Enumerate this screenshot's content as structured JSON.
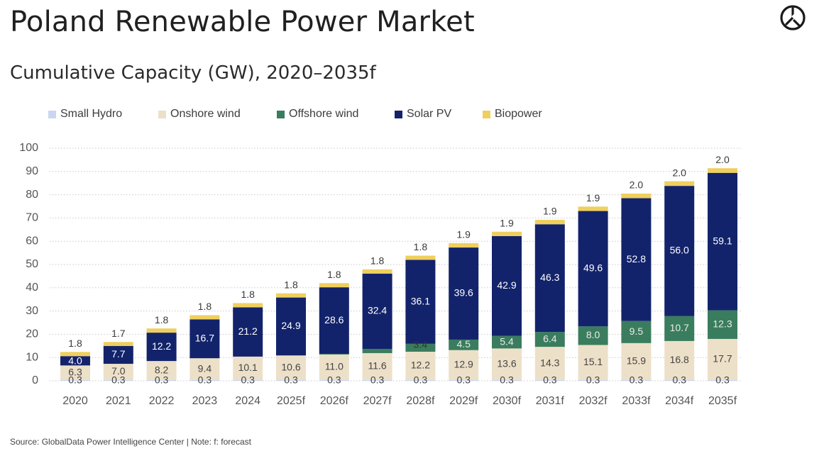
{
  "header": {
    "title": "Poland Renewable Power Market",
    "subtitle": "Cumulative Capacity (GW), 2020–2035f",
    "logo_icon": "globaldata-logo-icon"
  },
  "footer": {
    "source": "Source: GlobalData Power Intelligence Center | Note: f: forecast"
  },
  "chart_data": {
    "type": "bar",
    "stacked": true,
    "categories": [
      "2020",
      "2021",
      "2022",
      "2023",
      "2024",
      "2025f",
      "2026f",
      "2027f",
      "2028f",
      "2029f",
      "2030f",
      "2031f",
      "2032f",
      "2033f",
      "2034f",
      "2035f"
    ],
    "series": [
      {
        "name": "Small Hydro",
        "color": "#c9d6f2",
        "values": [
          0.3,
          0.3,
          0.3,
          0.3,
          0.3,
          0.3,
          0.3,
          0.3,
          0.3,
          0.3,
          0.3,
          0.3,
          0.3,
          0.3,
          0.3,
          0.3
        ]
      },
      {
        "name": "Onshore wind",
        "color": "#ede0c8",
        "values": [
          6.3,
          7.0,
          8.2,
          9.4,
          10.1,
          10.6,
          11.0,
          11.6,
          12.2,
          12.9,
          13.6,
          14.3,
          15.1,
          15.9,
          16.8,
          17.7
        ]
      },
      {
        "name": "Offshore wind",
        "color": "#3a7d5e",
        "values": [
          0,
          0,
          0,
          0,
          0,
          0,
          0.3,
          1.8,
          3.4,
          4.5,
          5.4,
          6.4,
          8.0,
          9.5,
          10.7,
          12.3
        ],
        "labels": [
          "",
          "",
          "",
          "",
          "",
          "",
          "",
          "",
          "3.4",
          "4.5",
          "5.4",
          "6.4",
          "8.0",
          "9.5",
          "10.7",
          "12.3"
        ]
      },
      {
        "name": "Solar PV",
        "color": "#13236b",
        "values": [
          4.0,
          7.7,
          12.2,
          16.7,
          21.2,
          24.9,
          28.6,
          32.4,
          36.1,
          39.6,
          42.9,
          46.3,
          49.6,
          52.8,
          56.0,
          59.1
        ]
      },
      {
        "name": "Biopower",
        "color": "#efcf5e",
        "values": [
          1.8,
          1.7,
          1.8,
          1.8,
          1.8,
          1.8,
          1.8,
          1.8,
          1.8,
          1.9,
          1.9,
          1.9,
          1.9,
          2.0,
          2.0,
          2.0
        ]
      }
    ],
    "ylim": [
      0,
      100
    ],
    "yticks": [
      0,
      10,
      20,
      30,
      40,
      50,
      60,
      70,
      80,
      90,
      100
    ],
    "grid": true,
    "legend_position": "top-left"
  }
}
